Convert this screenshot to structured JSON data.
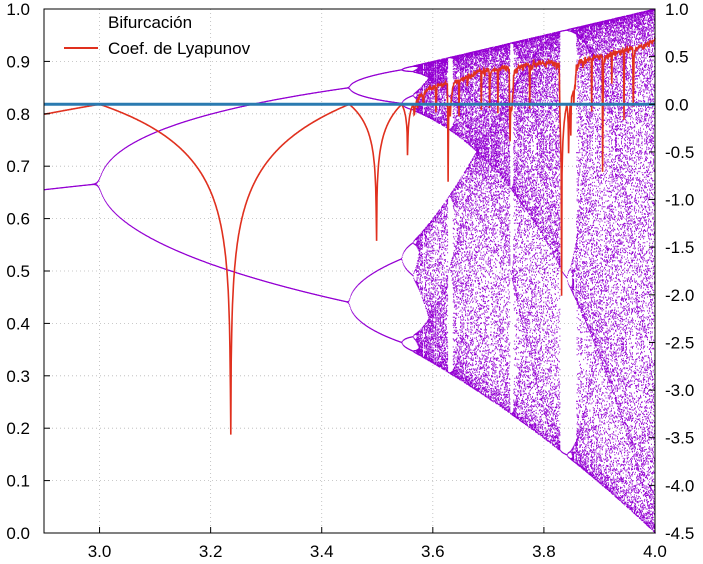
{
  "chart_data": {
    "type": "line",
    "x_ticks": [
      "3.0",
      "3.2",
      "3.4",
      "3.6",
      "3.8",
      "4.0"
    ],
    "y_left_ticks": [
      "0.0",
      "0.1",
      "0.2",
      "0.3",
      "0.4",
      "0.5",
      "0.6",
      "0.7",
      "0.8",
      "0.9",
      "1.0"
    ],
    "y_right_ticks": [
      "-4.5",
      "-4.0",
      "-3.5",
      "-3.0",
      "-2.5",
      "-2.0",
      "-1.5",
      "-1.0",
      "-0.5",
      "0.0",
      "0.5",
      "1.0"
    ],
    "xlim": [
      2.9,
      4.0
    ],
    "ylim_left": [
      0,
      1
    ],
    "ylim_right": [
      -4.5,
      1.0
    ],
    "grid": true,
    "legend_position": "top-left",
    "zero_reference_line": {
      "y_right": 0.0,
      "color": "#2a7ab0"
    },
    "series": [
      {
        "name": "Bifurcación",
        "color": "#9400d3",
        "axis": "left",
        "kind": "bifurcation"
      },
      {
        "name": "Coef. de Lyapunov",
        "color": "#e0301e",
        "axis": "right",
        "kind": "line"
      }
    ]
  },
  "legend": {
    "series1": "Bifurcación",
    "series2": "Coef. de Lyapunov"
  },
  "colors": {
    "bifurcation": "#9400d3",
    "lyapunov": "#e0301e",
    "zero_line": "#2a7ab0",
    "grid": "#b8b8b8"
  }
}
